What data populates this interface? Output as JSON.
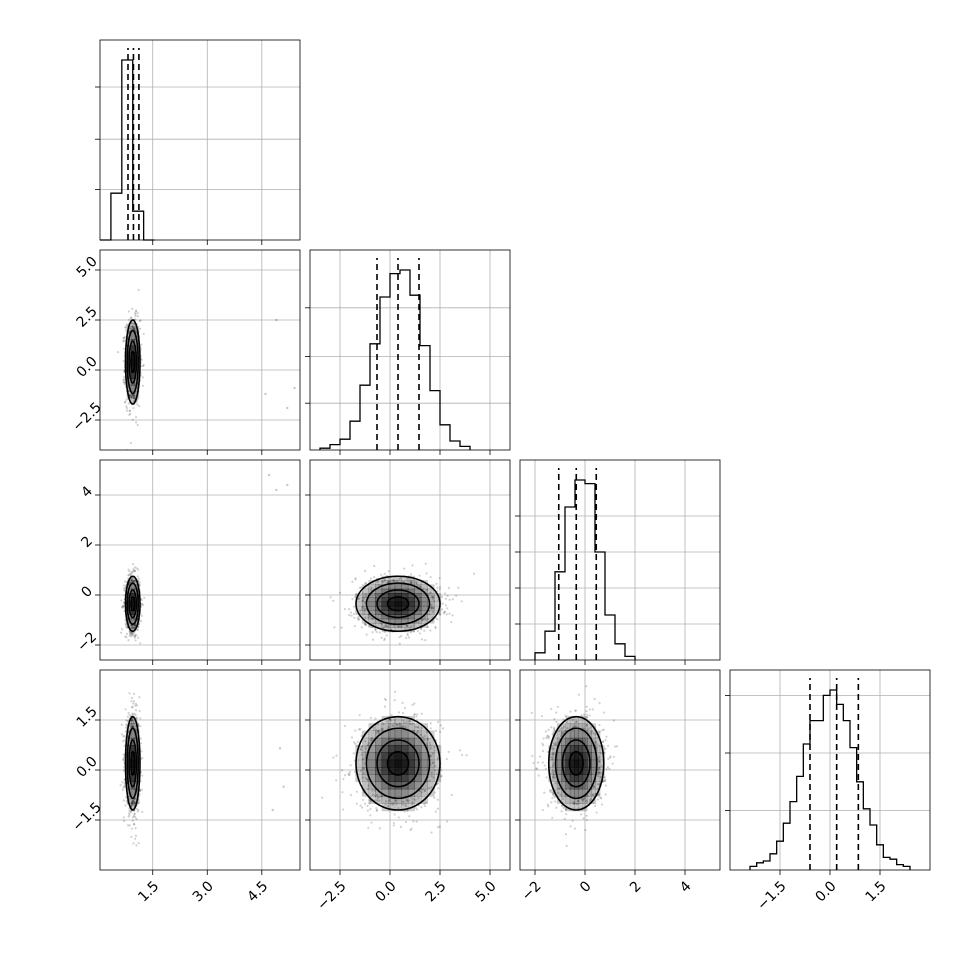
{
  "chart_data": {
    "type": "corner",
    "title": "",
    "n_params": 4,
    "parameters": [
      {
        "index": 0,
        "label": "",
        "range": [
          0.05,
          5.55
        ],
        "ticks": [
          1.5,
          3.0,
          4.5
        ],
        "tick_labels": [
          "1.5",
          "3.0",
          "4.5"
        ],
        "quantiles": [
          0.82,
          0.97,
          1.12
        ],
        "hist_edges": [
          0.05,
          0.35,
          0.65,
          0.95,
          1.25,
          1.55
        ],
        "hist_counts": [
          0,
          0.26,
          1.0,
          0.16,
          0
        ],
        "hist_ticks": [
          0.28,
          0.56,
          0.85
        ]
      },
      {
        "index": 1,
        "label": "",
        "range": [
          -4.0,
          6.0
        ],
        "ticks": [
          -2.5,
          0.0,
          2.5,
          5.0
        ],
        "tick_labels": [
          "−2.5",
          "0.0",
          "2.5",
          "5.0"
        ],
        "quantiles": [
          -0.65,
          0.4,
          1.45
        ],
        "hist_edges": [
          -3.5,
          -3.0,
          -2.5,
          -2.0,
          -1.5,
          -1.0,
          -0.5,
          0.0,
          0.5,
          1.0,
          1.5,
          2.0,
          2.5,
          3.0,
          3.5,
          4.0
        ],
        "hist_counts": [
          0.01,
          0.03,
          0.06,
          0.16,
          0.36,
          0.59,
          0.85,
          0.98,
          1.0,
          0.86,
          0.58,
          0.33,
          0.14,
          0.05,
          0.02
        ],
        "hist_ticks": [
          0.26,
          0.52,
          0.79
        ]
      },
      {
        "index": 2,
        "label": "",
        "range": [
          -2.6,
          5.4
        ],
        "ticks": [
          -2,
          0,
          2,
          4
        ],
        "tick_labels": [
          "−2",
          "0",
          "2",
          "4"
        ],
        "quantiles": [
          -1.05,
          -0.35,
          0.45
        ],
        "hist_edges": [
          -2.0,
          -1.6,
          -1.2,
          -0.8,
          -0.4,
          0.0,
          0.4,
          0.8,
          1.2,
          1.6,
          2.0
        ],
        "hist_counts": [
          0.04,
          0.16,
          0.49,
          0.85,
          1.0,
          0.98,
          0.6,
          0.25,
          0.09,
          0.02
        ],
        "hist_ticks": [
          0.2,
          0.4,
          0.6,
          0.8
        ]
      },
      {
        "index": 3,
        "label": "",
        "range": [
          -3.0,
          3.0
        ],
        "ticks": [
          -1.5,
          0.0,
          1.5
        ],
        "tick_labels": [
          "−1.5",
          "0.0",
          "1.5"
        ],
        "quantiles": [
          -0.6,
          0.2,
          0.85
        ],
        "hist_edges": [
          -2.4,
          -2.2,
          -2.0,
          -1.8,
          -1.6,
          -1.4,
          -1.2,
          -1.0,
          -0.8,
          -0.6,
          -0.4,
          -0.2,
          0.0,
          0.2,
          0.4,
          0.6,
          0.8,
          1.0,
          1.2,
          1.4,
          1.6,
          1.8,
          2.0,
          2.2,
          2.4
        ],
        "hist_counts": [
          0.02,
          0.04,
          0.05,
          0.09,
          0.16,
          0.26,
          0.38,
          0.52,
          0.7,
          0.83,
          0.83,
          0.97,
          1.0,
          0.92,
          0.83,
          0.68,
          0.49,
          0.34,
          0.25,
          0.14,
          0.07,
          0.06,
          0.03,
          0.02
        ],
        "hist_ticks": [
          0.33,
          0.65,
          0.97
        ]
      }
    ],
    "pairs": [
      {
        "x": 0,
        "y": 1,
        "center": [
          0.95,
          0.4
        ],
        "sigma": [
          0.1,
          1.05
        ],
        "rho": 0.0,
        "outliers": [
          [
            4.9,
            2.5
          ],
          [
            4.6,
            -1.2
          ],
          [
            5.2,
            -1.9
          ],
          [
            5.4,
            -0.9
          ]
        ]
      },
      {
        "x": 0,
        "y": 2,
        "center": [
          0.95,
          -0.35
        ],
        "sigma": [
          0.1,
          0.55
        ],
        "rho": 0.0,
        "outliers": [
          [
            4.7,
            4.8
          ],
          [
            5.2,
            4.4
          ],
          [
            4.9,
            4.2
          ]
        ]
      },
      {
        "x": 1,
        "y": 2,
        "center": [
          0.4,
          -0.35
        ],
        "sigma": [
          1.05,
          0.55
        ],
        "rho": 0.0,
        "outliers": []
      },
      {
        "x": 0,
        "y": 3,
        "center": [
          0.95,
          0.2
        ],
        "sigma": [
          0.1,
          0.7
        ],
        "rho": 0.0,
        "outliers": [
          [
            5.0,
            0.65
          ],
          [
            5.1,
            -0.5
          ],
          [
            4.8,
            -1.2
          ]
        ]
      },
      {
        "x": 1,
        "y": 3,
        "center": [
          0.4,
          0.2
        ],
        "sigma": [
          1.05,
          0.7
        ],
        "rho": 0.0,
        "outliers": []
      },
      {
        "x": 2,
        "y": 3,
        "center": [
          -0.35,
          0.2
        ],
        "sigma": [
          0.55,
          0.7
        ],
        "rho": 0.0,
        "outliers": []
      }
    ],
    "contour_levels_sigma": [
      0.5,
      1.0,
      1.5,
      2.0
    ],
    "grid": true,
    "colors": {
      "line": "#000000",
      "grid": "#b0b0b0",
      "points": "#000000",
      "density": "#000000"
    }
  }
}
